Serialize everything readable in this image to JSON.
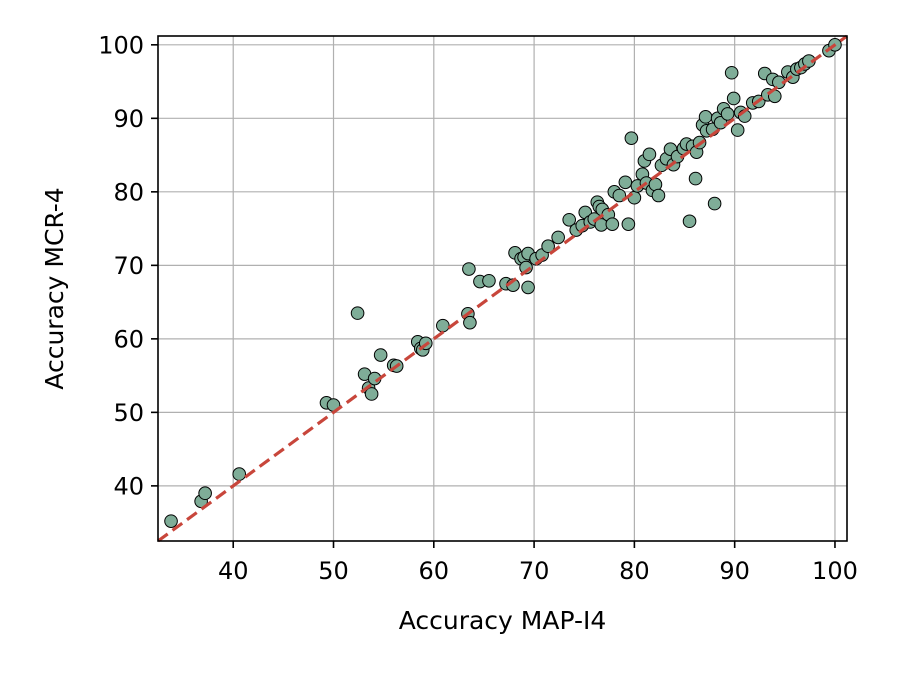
{
  "chart_data": {
    "type": "scatter",
    "title": "",
    "xlabel": "Accuracy MAP-I4",
    "ylabel": "Accuracy MCR-4",
    "xlim": [
      32.5,
      101.2
    ],
    "ylim": [
      32.5,
      101.2
    ],
    "xticks": [
      40,
      50,
      60,
      70,
      80,
      90,
      100
    ],
    "yticks": [
      40,
      50,
      60,
      70,
      80,
      90,
      100
    ],
    "grid": true,
    "legend": "none",
    "reference_line": {
      "kind": "y=x",
      "from": [
        32.5,
        32.5
      ],
      "to": [
        101.2,
        101.2
      ],
      "style": "dashed",
      "color": "#c8463b"
    },
    "colors": {
      "marker_fill": "#7fad98",
      "marker_edge": "#000000",
      "grid": "#b0b0b0",
      "axes": "#000000"
    },
    "series": [
      {
        "points": [
          [
            33.8,
            35.2
          ],
          [
            36.8,
            37.9
          ],
          [
            37.2,
            39.0
          ],
          [
            40.6,
            41.6
          ],
          [
            49.3,
            51.3
          ],
          [
            50.0,
            51.0
          ],
          [
            52.4,
            63.5
          ],
          [
            53.1,
            55.2
          ],
          [
            53.5,
            53.3
          ],
          [
            53.8,
            52.5
          ],
          [
            54.1,
            54.6
          ],
          [
            54.7,
            57.8
          ],
          [
            56.0,
            56.4
          ],
          [
            56.3,
            56.3
          ],
          [
            58.4,
            59.6
          ],
          [
            58.7,
            58.7
          ],
          [
            58.9,
            58.5
          ],
          [
            59.2,
            59.4
          ],
          [
            60.9,
            61.8
          ],
          [
            63.4,
            63.4
          ],
          [
            63.5,
            69.5
          ],
          [
            63.6,
            62.2
          ],
          [
            64.6,
            67.8
          ],
          [
            65.5,
            67.9
          ],
          [
            67.2,
            67.5
          ],
          [
            67.9,
            67.3
          ],
          [
            68.1,
            71.7
          ],
          [
            68.7,
            70.9
          ],
          [
            69.0,
            71.1
          ],
          [
            69.2,
            69.7
          ],
          [
            69.4,
            71.6
          ],
          [
            69.4,
            67.0
          ],
          [
            70.2,
            70.9
          ],
          [
            70.8,
            71.4
          ],
          [
            71.4,
            72.6
          ],
          [
            72.4,
            73.8
          ],
          [
            73.5,
            76.2
          ],
          [
            74.2,
            74.8
          ],
          [
            74.8,
            75.4
          ],
          [
            75.1,
            77.2
          ],
          [
            75.6,
            75.9
          ],
          [
            76.0,
            76.3
          ],
          [
            76.3,
            78.6
          ],
          [
            76.5,
            78.0
          ],
          [
            76.7,
            75.5
          ],
          [
            76.8,
            77.6
          ],
          [
            77.4,
            76.9
          ],
          [
            77.8,
            75.6
          ],
          [
            78.0,
            80.0
          ],
          [
            78.5,
            79.5
          ],
          [
            79.1,
            81.3
          ],
          [
            79.4,
            75.6
          ],
          [
            79.7,
            87.3
          ],
          [
            80.0,
            79.2
          ],
          [
            80.3,
            80.8
          ],
          [
            80.8,
            82.4
          ],
          [
            81.0,
            84.2
          ],
          [
            81.2,
            81.2
          ],
          [
            81.5,
            85.1
          ],
          [
            81.8,
            80.2
          ],
          [
            82.1,
            81.0
          ],
          [
            82.4,
            79.5
          ],
          [
            82.7,
            83.6
          ],
          [
            83.2,
            84.5
          ],
          [
            83.6,
            85.8
          ],
          [
            83.9,
            83.7
          ],
          [
            84.3,
            84.8
          ],
          [
            84.9,
            85.9
          ],
          [
            85.2,
            86.5
          ],
          [
            85.5,
            76.0
          ],
          [
            85.8,
            86.2
          ],
          [
            86.1,
            81.8
          ],
          [
            86.2,
            85.4
          ],
          [
            86.5,
            86.7
          ],
          [
            86.8,
            89.1
          ],
          [
            87.1,
            90.2
          ],
          [
            87.2,
            88.3
          ],
          [
            87.8,
            88.5
          ],
          [
            88.0,
            78.4
          ],
          [
            88.3,
            90.0
          ],
          [
            88.6,
            89.4
          ],
          [
            88.9,
            91.3
          ],
          [
            89.3,
            90.6
          ],
          [
            89.7,
            96.2
          ],
          [
            89.9,
            92.7
          ],
          [
            90.3,
            88.4
          ],
          [
            90.6,
            90.8
          ],
          [
            91.0,
            90.3
          ],
          [
            91.8,
            92.1
          ],
          [
            92.4,
            92.3
          ],
          [
            93.0,
            96.1
          ],
          [
            93.3,
            93.2
          ],
          [
            93.8,
            95.3
          ],
          [
            94.0,
            93.0
          ],
          [
            94.4,
            94.9
          ],
          [
            95.3,
            96.3
          ],
          [
            95.8,
            95.6
          ],
          [
            96.2,
            96.7
          ],
          [
            96.6,
            96.9
          ],
          [
            97.0,
            97.4
          ],
          [
            97.4,
            97.8
          ],
          [
            99.4,
            99.2
          ],
          [
            100.0,
            100.0
          ]
        ]
      }
    ]
  }
}
